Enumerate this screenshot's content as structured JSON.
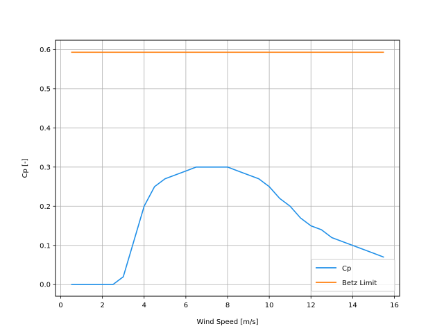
{
  "chart_data": {
    "type": "line",
    "title": "",
    "xlabel": "Wind Speed [m/s]",
    "ylabel": "Cp [-]",
    "xlim": [
      -0.25,
      16.25
    ],
    "ylim": [
      -0.0297,
      0.6237
    ],
    "xticks": [
      0,
      2,
      4,
      6,
      8,
      10,
      12,
      14,
      16
    ],
    "yticks": [
      0.0,
      0.1,
      0.2,
      0.3,
      0.4,
      0.5,
      0.6
    ],
    "grid": true,
    "legend_position": "lower-right",
    "series": [
      {
        "name": "Cp",
        "color": "#1f8fe8",
        "x": [
          0.5,
          1.0,
          1.5,
          2.0,
          2.5,
          3.0,
          3.5,
          4.0,
          4.5,
          5.0,
          5.5,
          6.0,
          6.5,
          7.0,
          7.5,
          8.0,
          8.5,
          9.0,
          9.5,
          10.0,
          10.5,
          11.0,
          11.5,
          12.0,
          12.5,
          13.0,
          13.5,
          14.0,
          14.5,
          15.0,
          15.5
        ],
        "y": [
          0.0,
          0.0,
          0.0,
          0.0,
          0.0,
          0.02,
          0.11,
          0.2,
          0.25,
          0.27,
          0.28,
          0.29,
          0.3,
          0.3,
          0.3,
          0.3,
          0.29,
          0.28,
          0.27,
          0.25,
          0.22,
          0.2,
          0.17,
          0.15,
          0.14,
          0.12,
          0.11,
          0.1,
          0.09,
          0.08,
          0.07
        ]
      },
      {
        "name": "Betz Limit",
        "color": "#ff7f0e",
        "x": [
          0.5,
          15.5
        ],
        "y": [
          0.593,
          0.593
        ]
      }
    ]
  }
}
